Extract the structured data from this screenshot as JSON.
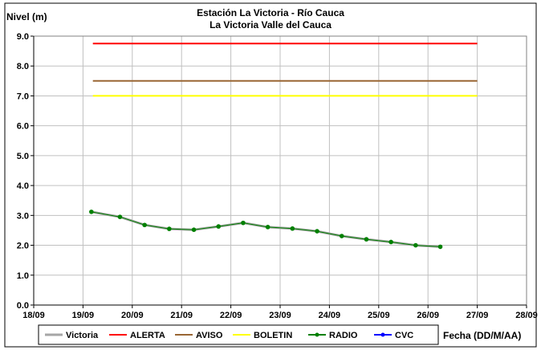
{
  "chart_data": {
    "type": "line",
    "title": "Estación La Victoria - Río Cauca",
    "subtitle": "La Victoria Valle del Cauca",
    "ylabel": "Nivel (m)",
    "xlabel": "Fecha (DD/M/AA)",
    "ylim": [
      0,
      9
    ],
    "yticks": [
      "0.0",
      "1.0",
      "2.0",
      "3.0",
      "4.0",
      "5.0",
      "6.0",
      "7.0",
      "8.0",
      "9.0"
    ],
    "xlim": [
      0,
      10
    ],
    "xticks": [
      "18/09",
      "19/09",
      "20/09",
      "21/09",
      "22/09",
      "23/09",
      "24/09",
      "25/09",
      "26/09",
      "27/09",
      "28/09"
    ],
    "grid": true,
    "legend_position": "bottom",
    "series": [
      {
        "name": "Victoria",
        "color": "#a6a6a6",
        "x": [
          1.17,
          1.75,
          2.25,
          2.75,
          3.25,
          3.75,
          4.25,
          4.75,
          5.25,
          5.75,
          6.25,
          6.75,
          7.25,
          7.75,
          8.25
        ],
        "y": [
          3.12,
          2.95,
          2.68,
          2.55,
          2.52,
          2.63,
          2.75,
          2.61,
          2.56,
          2.47,
          2.31,
          2.2,
          2.11,
          2.0,
          1.95
        ]
      },
      {
        "name": "ALERTA",
        "color": "#ff0000",
        "x": [
          1.2,
          9.0
        ],
        "y": [
          8.75,
          8.75
        ]
      },
      {
        "name": "AVISO",
        "color": "#996633",
        "x": [
          1.2,
          9.0
        ],
        "y": [
          7.5,
          7.5
        ]
      },
      {
        "name": "BOLETIN",
        "color": "#ffff00",
        "x": [
          1.2,
          9.0
        ],
        "y": [
          7.0,
          7.0
        ]
      },
      {
        "name": "RADIO",
        "color": "#008000",
        "x": [
          1.17,
          1.75,
          2.25,
          2.75,
          3.25,
          3.75,
          4.25,
          4.75,
          5.25,
          5.75,
          6.25,
          6.75,
          7.25,
          7.75,
          8.25
        ],
        "y": [
          3.12,
          2.95,
          2.68,
          2.55,
          2.52,
          2.63,
          2.75,
          2.61,
          2.56,
          2.47,
          2.31,
          2.2,
          2.11,
          2.0,
          1.95
        ]
      },
      {
        "name": "CVC",
        "color": "#0000ff",
        "x": [],
        "y": []
      }
    ]
  }
}
